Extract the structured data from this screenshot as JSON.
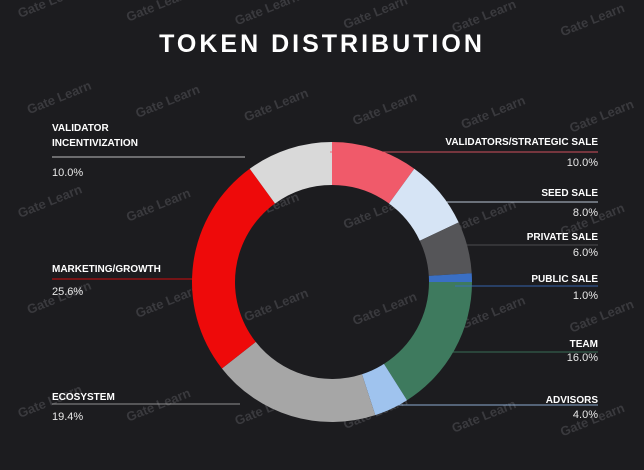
{
  "watermark": "Gate Learn",
  "chart_data": {
    "type": "pie",
    "donut": true,
    "title": "TOKEN DISTRIBUTION",
    "categories": [
      "VALIDATORS/STRATEGIC SALE",
      "SEED SALE",
      "PRIVATE SALE",
      "PUBLIC SALE",
      "TEAM",
      "ADVISORS",
      "ECOSYSTEM",
      "MARKETING/GROWTH",
      "VALIDATOR INCENTIVIZATION"
    ],
    "values": [
      10,
      8,
      6,
      1,
      16,
      4,
      19.4,
      25.6,
      10
    ],
    "value_labels": [
      "10.0%",
      "8.0%",
      "6.0%",
      "1.0%",
      "16.0%",
      "4.0%",
      "19.4%",
      "25.6%",
      "10.0%"
    ],
    "colors": [
      "#f05a6a",
      "#d6e4f5",
      "#555558",
      "#3a6fc4",
      "#3e7a5e",
      "#9fc3ee",
      "#a6a6a6",
      "#ee0a0a",
      "#d9d9d9"
    ]
  }
}
